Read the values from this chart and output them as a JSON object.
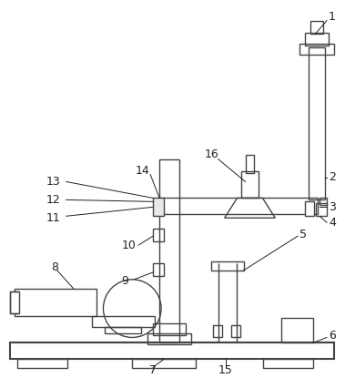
{
  "background_color": "#ffffff",
  "line_color": "#444444",
  "label_color": "#222222",
  "figsize": [
    3.79,
    4.15
  ],
  "dpi": 100
}
